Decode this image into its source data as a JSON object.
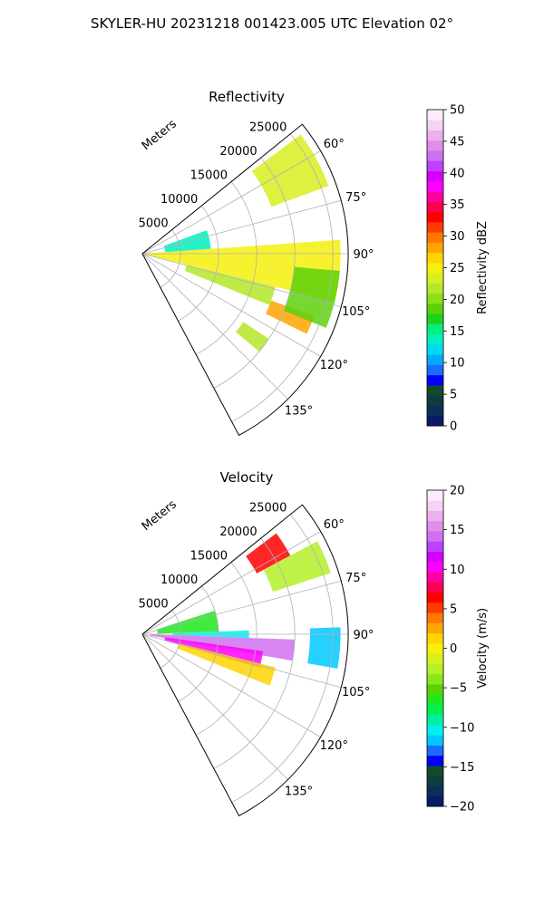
{
  "figure": {
    "title": "SKYLER-HU  20231218  001423.005 UTC Elevation 02°"
  },
  "colors": {
    "reflectivity_scale": [
      "#0a1a66",
      "#0c2f5a",
      "#0e3d3d",
      "#124a2e",
      "#0000ff",
      "#1a6cff",
      "#00aaff",
      "#00d8f0",
      "#00f0c0",
      "#00f080",
      "#1ed11e",
      "#5cd10a",
      "#8be018",
      "#b4e828",
      "#d8ee20",
      "#f6f00a",
      "#ffd400",
      "#ffa500",
      "#ff7800",
      "#ff3a00",
      "#ff0000",
      "#ff0050",
      "#ff00a0",
      "#ff00ff",
      "#d400ff",
      "#c040ff",
      "#d070f0",
      "#e08ee8",
      "#ecb0ee",
      "#f6d2f6",
      "#fcecfc"
    ],
    "velocity_scale": [
      "#0a1a66",
      "#0c2f5a",
      "#0e3d3d",
      "#124a2e",
      "#0000ff",
      "#1a6cff",
      "#00c8ff",
      "#00f0f0",
      "#00f0a0",
      "#00f050",
      "#1ee81e",
      "#5cd10a",
      "#8be818",
      "#b4f028",
      "#d8f020",
      "#f8f00a",
      "#ffd400",
      "#ffa500",
      "#ff7800",
      "#ff3a00",
      "#ff0000",
      "#ff0050",
      "#ff00a0",
      "#ff00ff",
      "#d400ff",
      "#c040ff",
      "#d070f0",
      "#e08ee8",
      "#ecb0ee",
      "#f6d2f6",
      "#fcecfc"
    ],
    "axis": "#000000",
    "grid": "#b0b0b0"
  },
  "chart_data": [
    {
      "type": "heatmap",
      "title": "Reflectivity",
      "projection": "polar-sector",
      "azimuth_ticks": [
        "60°",
        "75°",
        "90°",
        "105°",
        "120°",
        "135°"
      ],
      "azimuth_range": [
        51,
        152
      ],
      "range_label": "Meters",
      "range_ticks": [
        "5000",
        "10000",
        "15000",
        "20000",
        "25000"
      ],
      "range_max": 27000,
      "colorbar": {
        "label": "Reflectivity dBZ",
        "range": [
          0,
          50
        ],
        "ticks": [
          "0",
          "5",
          "10",
          "15",
          "20",
          "25",
          "30",
          "35",
          "40",
          "45",
          "50"
        ]
      },
      "regions": [
        {
          "az": [
            53,
            70
          ],
          "r": [
            18000,
            26000
          ],
          "value": 23
        },
        {
          "az": [
            70,
            86
          ],
          "r": [
            3000,
            9000
          ],
          "value": 14
        },
        {
          "az": [
            86,
            104
          ],
          "r": [
            0,
            26000
          ],
          "value": 25
        },
        {
          "az": [
            104,
            112
          ],
          "r": [
            6000,
            18000
          ],
          "value": 22
        },
        {
          "az": [
            110,
            116
          ],
          "r": [
            18000,
            24000
          ],
          "value": 28
        },
        {
          "az": [
            124,
            130
          ],
          "r": [
            16000,
            20000
          ],
          "value": 21
        },
        {
          "az": [
            95,
            112
          ],
          "r": [
            20000,
            26000
          ],
          "value": 19
        }
      ]
    },
    {
      "type": "heatmap",
      "title": "Velocity",
      "projection": "polar-sector",
      "azimuth_ticks": [
        "60°",
        "75°",
        "90°",
        "105°",
        "120°",
        "135°"
      ],
      "azimuth_range": [
        51,
        152
      ],
      "range_label": "Meters",
      "range_ticks": [
        "5000",
        "10000",
        "15000",
        "20000",
        "25000"
      ],
      "range_max": 27000,
      "colorbar": {
        "label": "Velocity (m/s)",
        "range": [
          -20,
          20
        ],
        "ticks": [
          "−20",
          "−15",
          "−10",
          "−5",
          "0",
          "5",
          "10",
          "15",
          "20"
        ]
      },
      "regions": [
        {
          "az": [
            53,
            62
          ],
          "r": [
            17000,
            22000
          ],
          "value": 6
        },
        {
          "az": [
            62,
            72
          ],
          "r": [
            18000,
            26000
          ],
          "value": -3
        },
        {
          "az": [
            72,
            88
          ],
          "r": [
            2000,
            10000
          ],
          "value": -6
        },
        {
          "az": [
            88,
            92
          ],
          "r": [
            4000,
            14000
          ],
          "value": -10
        },
        {
          "az": [
            92,
            100
          ],
          "r": [
            1000,
            20000
          ],
          "value": 14
        },
        {
          "az": [
            98,
            106
          ],
          "r": [
            3000,
            16000
          ],
          "value": 10
        },
        {
          "az": [
            88,
            100
          ],
          "r": [
            22000,
            26000
          ],
          "value": -12
        },
        {
          "az": [
            104,
            112
          ],
          "r": [
            5000,
            18000
          ],
          "value": 1
        }
      ]
    }
  ]
}
